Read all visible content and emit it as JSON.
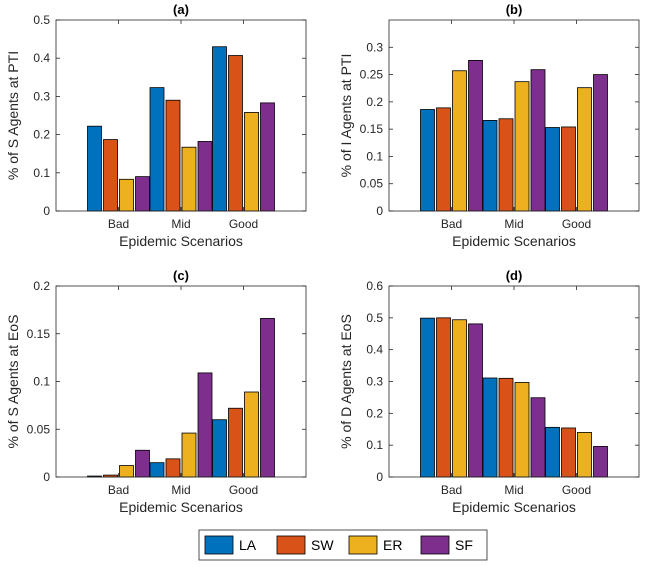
{
  "series_colors": {
    "LA": "#0072BD",
    "SW": "#D95319",
    "ER": "#EDB120",
    "SF": "#7E2F8E"
  },
  "legend": [
    "LA",
    "SW",
    "ER",
    "SF"
  ],
  "chart_data": [
    {
      "type": "bar",
      "title": "(a)",
      "xlabel": "Epidemic Scenarios",
      "ylabel": "% of S Agents at PTI",
      "categories": [
        "Bad",
        "Mid",
        "Good"
      ],
      "ylim": [
        0,
        0.5
      ],
      "yticks": [
        0,
        0.1,
        0.2,
        0.3,
        0.4,
        0.5
      ],
      "ytick_labels": [
        "0",
        "0.1",
        "0.2",
        "0.3",
        "0.4",
        "0.5"
      ],
      "series": [
        {
          "name": "LA",
          "values": [
            0.222,
            0.323,
            0.43
          ]
        },
        {
          "name": "SW",
          "values": [
            0.187,
            0.29,
            0.407
          ]
        },
        {
          "name": "ER",
          "values": [
            0.083,
            0.167,
            0.258
          ]
        },
        {
          "name": "SF",
          "values": [
            0.09,
            0.182,
            0.283
          ]
        }
      ]
    },
    {
      "type": "bar",
      "title": "(b)",
      "xlabel": "Epidemic Scenarios",
      "ylabel": "% of I Agents at PTI",
      "categories": [
        "Bad",
        "Mid",
        "Good"
      ],
      "ylim": [
        0,
        0.35
      ],
      "yticks": [
        0,
        0.05,
        0.1,
        0.15,
        0.2,
        0.25,
        0.3
      ],
      "ytick_labels": [
        "0",
        "0.05",
        "0.1",
        "0.15",
        "0.2",
        "0.25",
        "0.3"
      ],
      "series": [
        {
          "name": "LA",
          "values": [
            0.186,
            0.166,
            0.153
          ]
        },
        {
          "name": "SW",
          "values": [
            0.189,
            0.169,
            0.154
          ]
        },
        {
          "name": "ER",
          "values": [
            0.257,
            0.237,
            0.226
          ]
        },
        {
          "name": "SF",
          "values": [
            0.276,
            0.259,
            0.25
          ]
        }
      ]
    },
    {
      "type": "bar",
      "title": "(c)",
      "xlabel": "Epidemic Scenarios",
      "ylabel": "% of S Agents at EoS",
      "categories": [
        "Bad",
        "Mid",
        "Good"
      ],
      "ylim": [
        0,
        0.2
      ],
      "yticks": [
        0,
        0.05,
        0.1,
        0.15,
        0.2
      ],
      "ytick_labels": [
        "0",
        "0.05",
        "0.1",
        "0.15",
        "0.2"
      ],
      "series": [
        {
          "name": "LA",
          "values": [
            0.001,
            0.015,
            0.06
          ]
        },
        {
          "name": "SW",
          "values": [
            0.002,
            0.019,
            0.072
          ]
        },
        {
          "name": "ER",
          "values": [
            0.012,
            0.046,
            0.089
          ]
        },
        {
          "name": "SF",
          "values": [
            0.028,
            0.109,
            0.166
          ]
        }
      ]
    },
    {
      "type": "bar",
      "title": "(d)",
      "xlabel": "Epidemic Scenarios",
      "ylabel": "% of D Agents at EoS",
      "categories": [
        "Bad",
        "Mid",
        "Good"
      ],
      "ylim": [
        0,
        0.6
      ],
      "yticks": [
        0,
        0.1,
        0.2,
        0.3,
        0.4,
        0.5,
        0.6
      ],
      "ytick_labels": [
        "0",
        "0.1",
        "0.2",
        "0.3",
        "0.4",
        "0.5",
        "0.6"
      ],
      "series": [
        {
          "name": "LA",
          "values": [
            0.499,
            0.311,
            0.156
          ]
        },
        {
          "name": "SW",
          "values": [
            0.5,
            0.31,
            0.154
          ]
        },
        {
          "name": "ER",
          "values": [
            0.494,
            0.297,
            0.14
          ]
        },
        {
          "name": "SF",
          "values": [
            0.481,
            0.249,
            0.096
          ]
        }
      ]
    }
  ]
}
